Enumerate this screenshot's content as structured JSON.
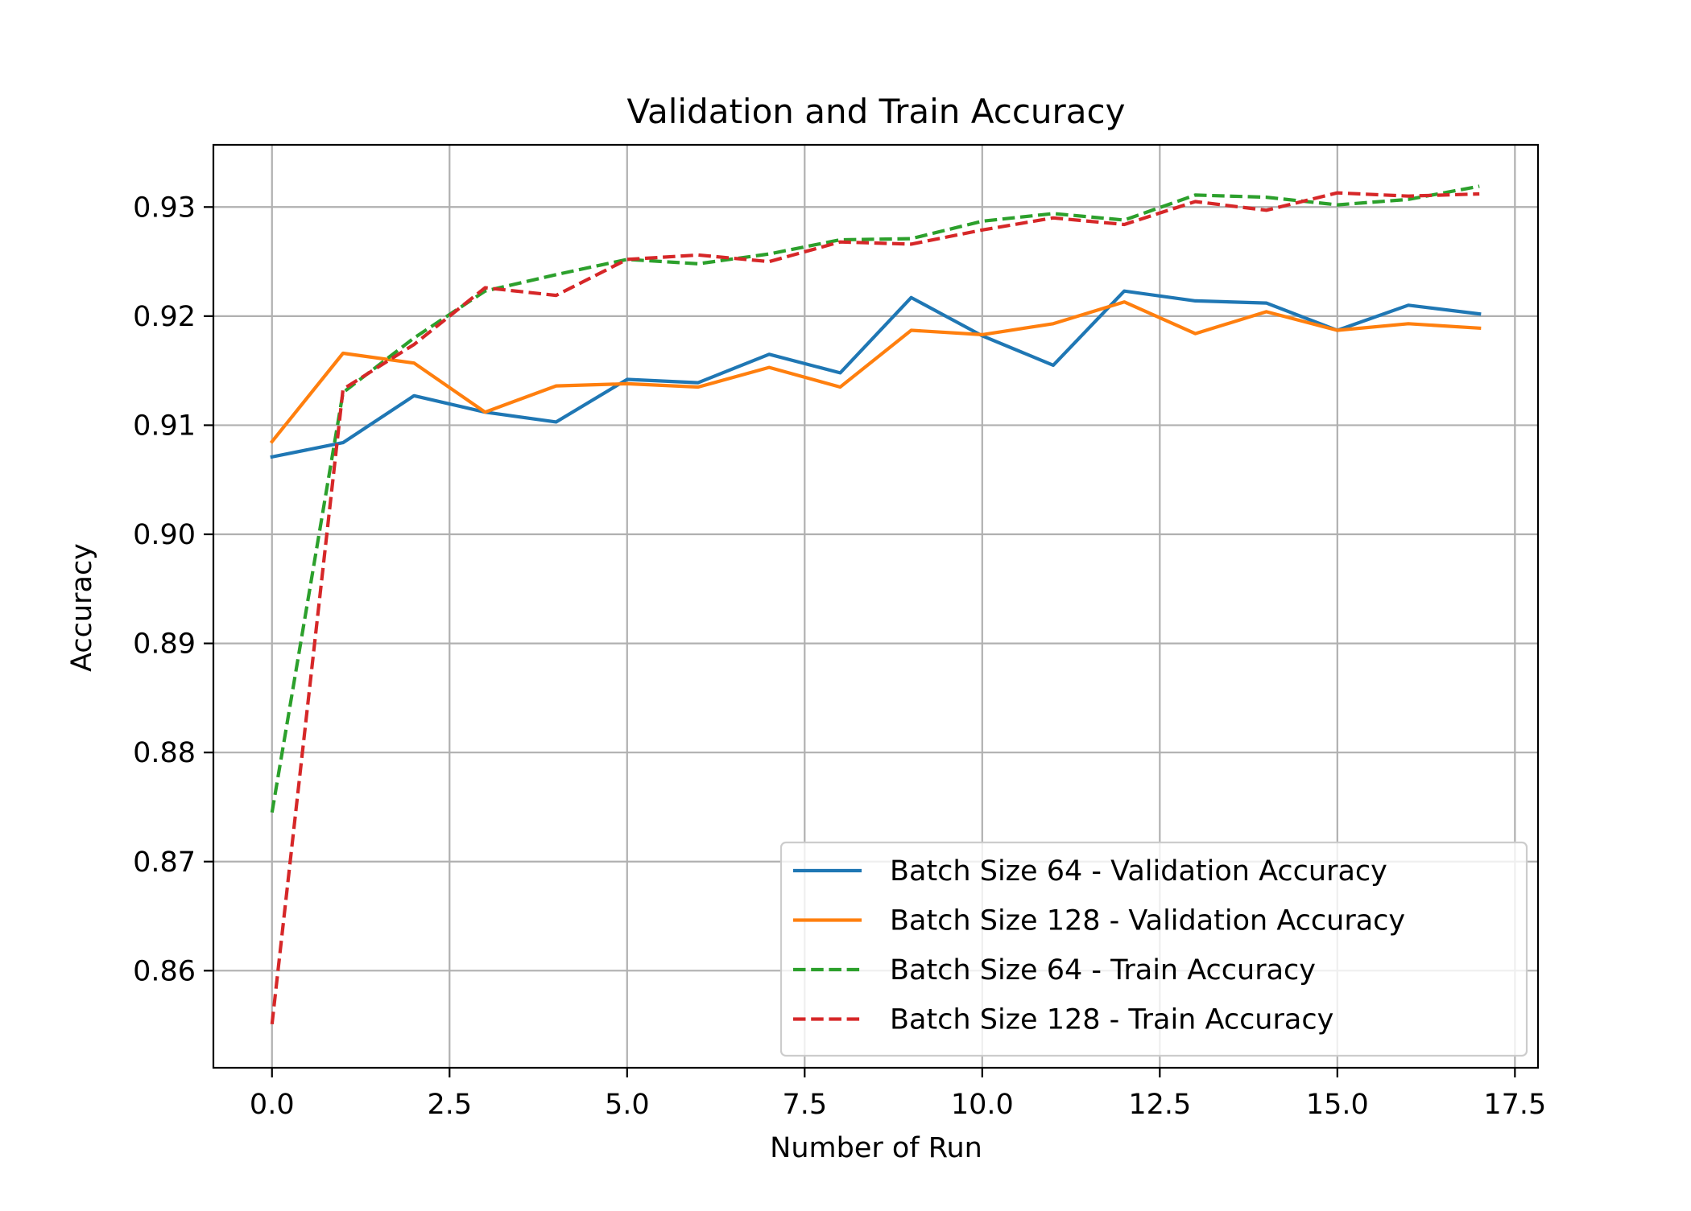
{
  "chart_data": {
    "type": "line",
    "title": "Validation and Train Accuracy",
    "xlabel": "Number of Run",
    "ylabel": "Accuracy",
    "xlim": [
      -0.825,
      17.825
    ],
    "ylim": [
      0.8511,
      0.9357
    ],
    "xticks": [
      0.0,
      2.5,
      5.0,
      7.5,
      10.0,
      12.5,
      15.0,
      17.5
    ],
    "xtick_labels": [
      "0.0",
      "2.5",
      "5.0",
      "7.5",
      "10.0",
      "12.5",
      "15.0",
      "17.5"
    ],
    "yticks": [
      0.86,
      0.87,
      0.88,
      0.89,
      0.9,
      0.91,
      0.92,
      0.93
    ],
    "ytick_labels": [
      "0.86",
      "0.87",
      "0.88",
      "0.89",
      "0.90",
      "0.91",
      "0.92",
      "0.93"
    ],
    "grid": true,
    "legend_position": "lower-right",
    "x": [
      0,
      1,
      2,
      3,
      4,
      5,
      6,
      7,
      8,
      9,
      10,
      11,
      12,
      13,
      14,
      15,
      16,
      17
    ],
    "series": [
      {
        "name": "Batch Size 64 - Validation Accuracy",
        "color": "#1f77b4",
        "style": "solid",
        "values": [
          0.9071,
          0.9084,
          0.9127,
          0.9112,
          0.9103,
          0.9142,
          0.9139,
          0.9165,
          0.9148,
          0.9217,
          0.9182,
          0.9155,
          0.9223,
          0.9214,
          0.9212,
          0.9187,
          0.921,
          0.9202
        ]
      },
      {
        "name": "Batch Size 128 - Validation Accuracy",
        "color": "#ff7f0e",
        "style": "solid",
        "values": [
          0.9085,
          0.9166,
          0.9157,
          0.9112,
          0.9136,
          0.9138,
          0.9135,
          0.9153,
          0.9135,
          0.9187,
          0.9183,
          0.9193,
          0.9213,
          0.9184,
          0.9204,
          0.9187,
          0.9193,
          0.9189
        ]
      },
      {
        "name": "Batch Size 64 - Train Accuracy",
        "color": "#2ca02c",
        "style": "dashed",
        "values": [
          0.8745,
          0.913,
          0.918,
          0.9223,
          0.9238,
          0.9252,
          0.9248,
          0.9257,
          0.927,
          0.9271,
          0.9287,
          0.9294,
          0.9288,
          0.9311,
          0.9309,
          0.9302,
          0.9307,
          0.9319
        ]
      },
      {
        "name": "Batch Size 128 - Train Accuracy",
        "color": "#d62728",
        "style": "dashed",
        "values": [
          0.8551,
          0.9133,
          0.9174,
          0.9226,
          0.9219,
          0.9252,
          0.9256,
          0.925,
          0.9268,
          0.9266,
          0.9279,
          0.929,
          0.9284,
          0.9305,
          0.9297,
          0.9313,
          0.931,
          0.9312
        ]
      }
    ]
  }
}
